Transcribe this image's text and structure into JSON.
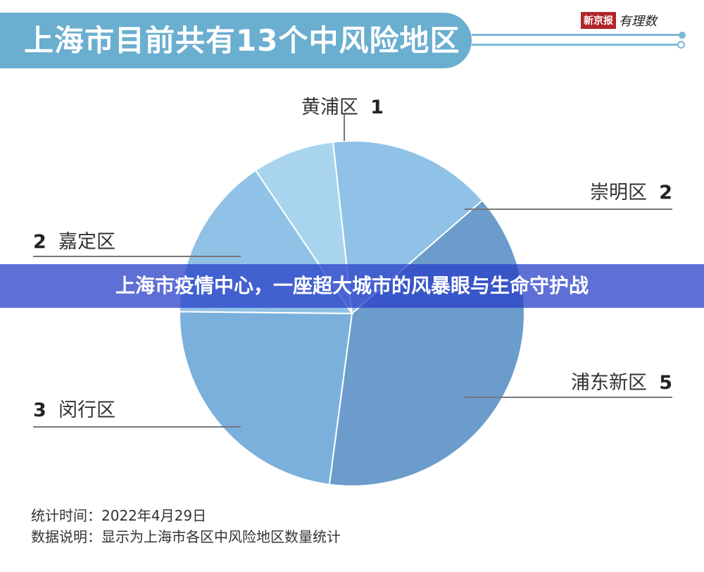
{
  "header": {
    "title": "上海市目前共有13个中风险地区",
    "logo_brand": "新京报",
    "logo_sub": "有理数"
  },
  "banner": {
    "text": "上海市疫情中心，一座超大城市的风暴眼与生命守护战"
  },
  "chart_data": {
    "type": "pie",
    "title": "上海市目前共有13个中风险地区",
    "slices": [
      {
        "label": "黄浦区",
        "value": 1,
        "color": "#a9d4ee"
      },
      {
        "label": "崇明区",
        "value": 2,
        "color": "#90c1e6"
      },
      {
        "label": "浦东新区",
        "value": 5,
        "color": "#6b9ccc"
      },
      {
        "label": "闵行区",
        "value": 3,
        "color": "#7bb0dc"
      },
      {
        "label": "嘉定区",
        "value": 2,
        "color": "#90c1e6"
      }
    ]
  },
  "footer": {
    "time_label": "统计时间：",
    "time_value": "2022年4月29日",
    "note_label": "数据说明：",
    "note_value": "显示为上海市各区中风险地区数量统计"
  }
}
